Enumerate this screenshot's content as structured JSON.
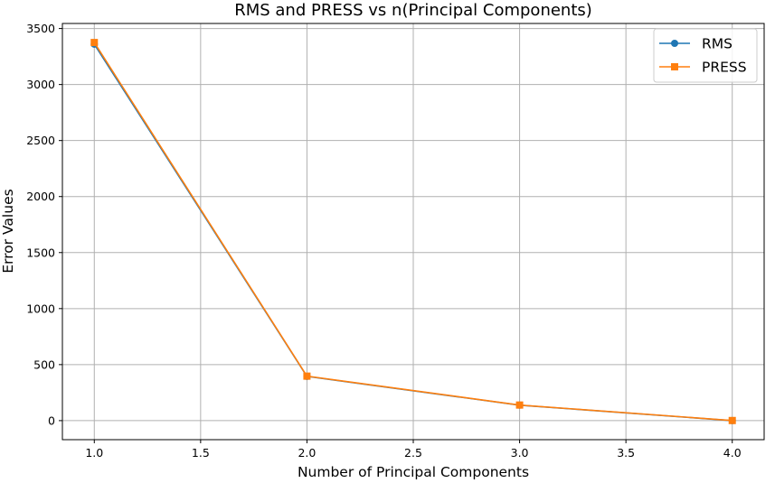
{
  "chart_data": {
    "type": "line",
    "title": "RMS and PRESS vs n(Principal Components)",
    "xlabel": "Number of Principal Components",
    "ylabel": "Error Values",
    "x": [
      1.0,
      2.0,
      3.0,
      4.0
    ],
    "xlim": [
      0.85,
      4.15
    ],
    "ylim": [
      -170,
      3545
    ],
    "xticks": [
      1.0,
      1.5,
      2.0,
      2.5,
      3.0,
      3.5,
      4.0
    ],
    "xtick_labels": [
      "1.0",
      "1.5",
      "2.0",
      "2.5",
      "3.0",
      "3.5",
      "4.0"
    ],
    "yticks": [
      0,
      500,
      1000,
      1500,
      2000,
      2500,
      3000,
      3500
    ],
    "ytick_labels": [
      "0",
      "500",
      "1000",
      "1500",
      "2000",
      "2500",
      "3000",
      "3500"
    ],
    "grid": true,
    "legend_position": "top-right",
    "series": [
      {
        "name": "RMS",
        "values": [
          3360,
          395,
          138,
          0
        ],
        "color": "#1f77b4",
        "marker": "circle"
      },
      {
        "name": "PRESS",
        "values": [
          3375,
          397,
          139,
          1
        ],
        "color": "#ff7f0e",
        "marker": "square"
      }
    ]
  }
}
